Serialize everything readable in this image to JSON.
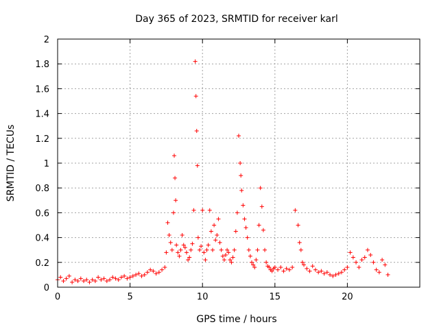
{
  "chart_data": {
    "type": "scatter",
    "title": "Day 365 of 2023, SRMTID for receiver karl",
    "xlabel": "GPS time / hours",
    "ylabel": "SRMTID / TECUs",
    "xlim": [
      0,
      25
    ],
    "ylim": [
      0,
      2
    ],
    "xticks": [
      0,
      5,
      10,
      15,
      20
    ],
    "yticks": [
      0,
      0.2,
      0.4,
      0.6,
      0.8,
      1,
      1.2,
      1.4,
      1.6,
      1.8,
      2
    ],
    "xtick_labels": [
      "0",
      "5",
      "10",
      "15",
      "20"
    ],
    "ytick_labels": [
      "0",
      "0.2",
      "0.4",
      "0.6",
      "0.8",
      "1",
      "1.2",
      "1.4",
      "1.6",
      "1.8",
      "2"
    ],
    "grid": true,
    "marker": "+",
    "series": [
      {
        "name": "SRMTID",
        "color": "#ff0000",
        "x": [
          0.0,
          0.2,
          0.4,
          0.6,
          0.8,
          1.0,
          1.2,
          1.4,
          1.6,
          1.8,
          2.0,
          2.2,
          2.4,
          2.6,
          2.8,
          3.0,
          3.2,
          3.4,
          3.6,
          3.8,
          4.0,
          4.2,
          4.4,
          4.6,
          4.8,
          5.0,
          5.2,
          5.4,
          5.6,
          5.8,
          6.0,
          6.2,
          6.4,
          6.6,
          6.8,
          7.0,
          7.2,
          7.4,
          7.5,
          7.6,
          7.7,
          7.8,
          7.9,
          8.0,
          8.05,
          8.1,
          8.15,
          8.2,
          8.3,
          8.4,
          8.5,
          8.6,
          8.7,
          8.8,
          8.9,
          9.0,
          9.1,
          9.2,
          9.3,
          9.4,
          9.5,
          9.55,
          9.6,
          9.65,
          9.7,
          9.8,
          9.9,
          10.0,
          10.1,
          10.2,
          10.3,
          10.4,
          10.5,
          10.6,
          10.7,
          10.8,
          10.9,
          11.0,
          11.1,
          11.2,
          11.3,
          11.4,
          11.5,
          11.6,
          11.7,
          11.8,
          11.9,
          12.0,
          12.1,
          12.2,
          12.3,
          12.4,
          12.5,
          12.6,
          12.65,
          12.7,
          12.8,
          12.9,
          13.0,
          13.1,
          13.2,
          13.3,
          13.4,
          13.5,
          13.6,
          13.7,
          13.8,
          13.9,
          14.0,
          14.1,
          14.2,
          14.3,
          14.4,
          14.5,
          14.6,
          14.7,
          14.8,
          14.9,
          15.0,
          15.2,
          15.4,
          15.6,
          15.8,
          16.0,
          16.2,
          16.4,
          16.6,
          16.7,
          16.8,
          16.9,
          17.0,
          17.2,
          17.4,
          17.6,
          17.8,
          18.0,
          18.2,
          18.4,
          18.6,
          18.8,
          19.0,
          19.2,
          19.4,
          19.6,
          19.8,
          20.0,
          20.2,
          20.4,
          20.6,
          20.8,
          21.0,
          21.2,
          21.4,
          21.6,
          21.8,
          22.0,
          22.2,
          22.4,
          22.6,
          22.8
        ],
        "y": [
          0.06,
          0.08,
          0.05,
          0.07,
          0.09,
          0.04,
          0.06,
          0.05,
          0.07,
          0.05,
          0.06,
          0.04,
          0.06,
          0.05,
          0.08,
          0.06,
          0.07,
          0.05,
          0.06,
          0.08,
          0.07,
          0.06,
          0.08,
          0.09,
          0.07,
          0.08,
          0.09,
          0.1,
          0.11,
          0.09,
          0.1,
          0.12,
          0.14,
          0.13,
          0.11,
          0.12,
          0.14,
          0.16,
          0.28,
          0.52,
          0.42,
          0.36,
          0.3,
          0.6,
          1.06,
          0.88,
          0.7,
          0.34,
          0.28,
          0.25,
          0.3,
          0.42,
          0.34,
          0.32,
          0.28,
          0.22,
          0.24,
          0.3,
          0.35,
          0.62,
          1.82,
          1.54,
          1.26,
          0.98,
          0.4,
          0.3,
          0.33,
          0.62,
          0.28,
          0.22,
          0.3,
          0.34,
          0.62,
          0.45,
          0.3,
          0.5,
          0.38,
          0.42,
          0.55,
          0.36,
          0.3,
          0.25,
          0.22,
          0.26,
          0.3,
          0.28,
          0.22,
          0.2,
          0.24,
          0.3,
          0.45,
          0.6,
          1.22,
          1.0,
          0.9,
          0.78,
          0.66,
          0.55,
          0.48,
          0.4,
          0.3,
          0.25,
          0.2,
          0.18,
          0.16,
          0.22,
          0.3,
          0.5,
          0.8,
          0.65,
          0.46,
          0.3,
          0.2,
          0.17,
          0.16,
          0.14,
          0.13,
          0.15,
          0.16,
          0.14,
          0.16,
          0.13,
          0.15,
          0.14,
          0.16,
          0.62,
          0.5,
          0.36,
          0.3,
          0.2,
          0.18,
          0.15,
          0.13,
          0.17,
          0.14,
          0.12,
          0.13,
          0.11,
          0.12,
          0.1,
          0.09,
          0.1,
          0.11,
          0.12,
          0.14,
          0.16,
          0.28,
          0.24,
          0.2,
          0.16,
          0.22,
          0.24,
          0.3,
          0.26,
          0.2,
          0.14,
          0.12,
          0.22,
          0.18,
          0.1
        ]
      }
    ]
  }
}
